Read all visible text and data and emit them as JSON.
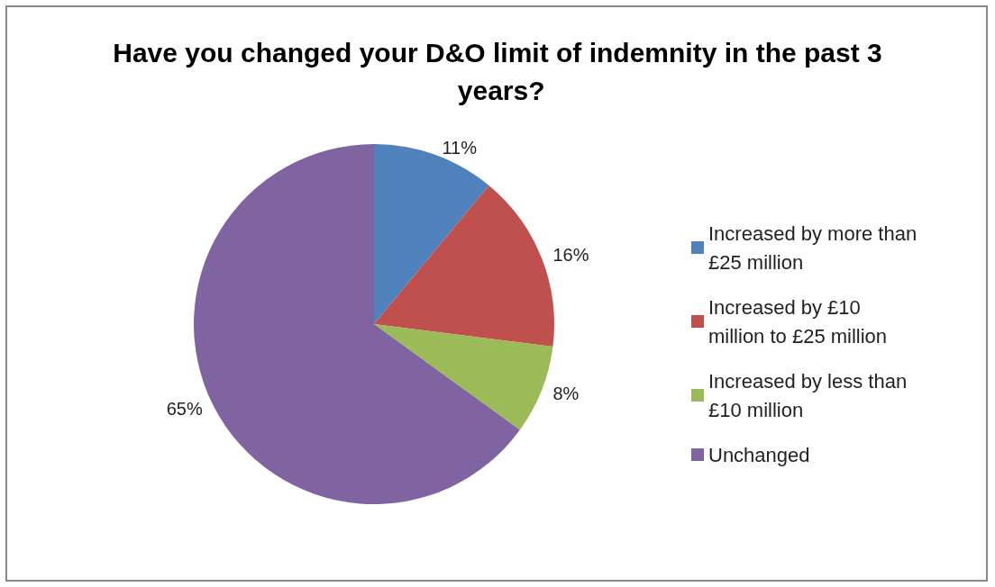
{
  "chart_data": {
    "type": "pie",
    "title": "Have you changed your D&O limit of indemnity in the past 3 years?",
    "categories": [
      "Increased by more than £25 million",
      "Increased by £10 million to £25 million",
      "Increased by less than £10 million",
      "Unchanged"
    ],
    "values": [
      11,
      16,
      8,
      65
    ],
    "colors": [
      "#4f81bd",
      "#c0504d",
      "#9bbb59",
      "#8064a2"
    ],
    "value_labels": [
      "11%",
      "16%",
      "8%",
      "65%"
    ],
    "legend": "right"
  }
}
